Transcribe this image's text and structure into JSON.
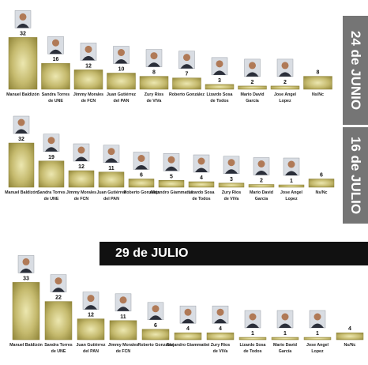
{
  "theme": {
    "bar_light": "#ece7b0",
    "bar_mid": "#c5ba6e",
    "bar_dark": "#8f8438",
    "tag_bg": "#757575",
    "banner_bg": "#111111"
  },
  "tags": {
    "junio": "24 de JUNIO",
    "julio16": "16 de JULIO"
  },
  "banner": {
    "label": "29 de JULIO"
  },
  "chart_data": [
    {
      "type": "bar",
      "title": "24 de JUNIO",
      "categories": [
        "Manuel Baldizón",
        "Sandra Torres de UNE",
        "Jimmy Morales de FCN",
        "Juan Gutiérrez del PAN",
        "Zury Ríos de ViVa",
        "Roberto González",
        "Lizardo Sosa de Todos",
        "Mario David García",
        "Jose Angel Lopez",
        "Ns/Nc"
      ],
      "values": [
        32,
        16,
        12,
        10,
        8,
        7,
        3,
        2,
        2,
        8
      ],
      "photos": [
        true,
        true,
        true,
        true,
        true,
        true,
        true,
        true,
        true,
        false
      ]
    },
    {
      "type": "bar",
      "title": "16 de JULIO",
      "categories": [
        "Manuel Baldizón",
        "Sandra Torres de UNE",
        "Jimmy Morales de FCN",
        "Juan Gutiérrez del PAN",
        "Roberto González",
        "Alejandro Giammattei",
        "Lizardo Sosa de Todos",
        "Zury Ríos de ViVa",
        "Mario David García",
        "Jose Angel Lopez",
        "Ns/Nc"
      ],
      "values": [
        32,
        19,
        12,
        11,
        6,
        5,
        4,
        3,
        2,
        1,
        6
      ],
      "photos": [
        true,
        true,
        true,
        true,
        true,
        true,
        true,
        true,
        true,
        true,
        false
      ]
    },
    {
      "type": "bar",
      "title": "29 de JULIO",
      "categories": [
        "Manuel Baldizón",
        "Sandra Torres de UNE",
        "Juan Gutiérrez del PAN",
        "Jimmy Morales de FCN",
        "Roberto González",
        "Alejandro Giammattei",
        "Zury Ríos de ViVa",
        "Lizardo Sosa de Todos",
        "Mario David García",
        "Jose Angel Lopez",
        "Ns/Nc"
      ],
      "values": [
        33,
        22,
        12,
        11,
        6,
        4,
        4,
        1,
        1,
        1,
        4
      ],
      "photos": [
        true,
        true,
        true,
        true,
        true,
        true,
        true,
        true,
        true,
        true,
        false
      ]
    }
  ]
}
